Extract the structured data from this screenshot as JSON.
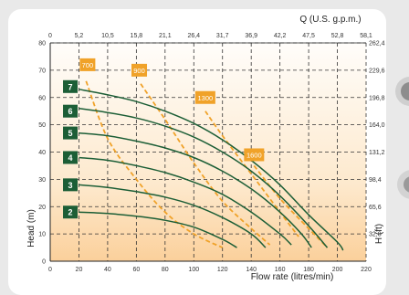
{
  "chart_data": {
    "type": "line",
    "title": "",
    "top_axis_title": "Q (U.S. g.p.m.)",
    "bottom_axis_title": "Flow rate (litres/min)",
    "left_axis_title": "Head (m)",
    "right_axis_title": "H (ft)",
    "xlim": [
      0,
      220
    ],
    "ylim": [
      0,
      80
    ],
    "x_ticks": [
      0,
      20,
      40,
      60,
      80,
      100,
      120,
      140,
      160,
      180,
      200,
      220
    ],
    "y_ticks": [
      0,
      10,
      20,
      30,
      40,
      50,
      60,
      70,
      80
    ],
    "top_ticks": [
      "0",
      "5,2",
      "10,5",
      "15,8",
      "21,1",
      "26,4",
      "31,7",
      "36,9",
      "42,2",
      "47,5",
      "52,8",
      "58,1"
    ],
    "right_ticks": [
      "32,8",
      "65,6",
      "98,4",
      "131,2",
      "164,0",
      "196,8",
      "229,6",
      "262,4"
    ],
    "right_ticks_y": [
      10,
      20,
      30,
      40,
      50,
      60,
      70,
      80
    ],
    "grid": true,
    "pump_color": "#1c5e36",
    "power_color": "#f0a229",
    "pump_curves": [
      {
        "name": "2",
        "label_y": 18,
        "points": [
          [
            20,
            18
          ],
          [
            40,
            17.5
          ],
          [
            60,
            16.5
          ],
          [
            80,
            15
          ],
          [
            100,
            12.5
          ],
          [
            120,
            8
          ],
          [
            130,
            5
          ]
        ]
      },
      {
        "name": "3",
        "label_y": 28,
        "points": [
          [
            20,
            28
          ],
          [
            40,
            27
          ],
          [
            60,
            25.5
          ],
          [
            80,
            23.5
          ],
          [
            100,
            20.5
          ],
          [
            120,
            16
          ],
          [
            140,
            10
          ],
          [
            150,
            5
          ]
        ]
      },
      {
        "name": "4",
        "label_y": 38,
        "points": [
          [
            20,
            38
          ],
          [
            40,
            37
          ],
          [
            60,
            35
          ],
          [
            80,
            32.5
          ],
          [
            100,
            29
          ],
          [
            120,
            24.5
          ],
          [
            140,
            18
          ],
          [
            160,
            10
          ],
          [
            168,
            6
          ]
        ]
      },
      {
        "name": "5",
        "label_y": 47,
        "points": [
          [
            20,
            47
          ],
          [
            40,
            46
          ],
          [
            60,
            44
          ],
          [
            80,
            41.5
          ],
          [
            100,
            38
          ],
          [
            120,
            33
          ],
          [
            140,
            26.5
          ],
          [
            160,
            18
          ],
          [
            175,
            10
          ],
          [
            182,
            5
          ]
        ]
      },
      {
        "name": "6",
        "label_y": 55,
        "points": [
          [
            20,
            56
          ],
          [
            40,
            54.5
          ],
          [
            60,
            52.5
          ],
          [
            80,
            49.5
          ],
          [
            100,
            45.5
          ],
          [
            120,
            40
          ],
          [
            140,
            33
          ],
          [
            160,
            24
          ],
          [
            180,
            13
          ],
          [
            193,
            5
          ]
        ]
      },
      {
        "name": "7",
        "label_y": 64,
        "points": [
          [
            20,
            63
          ],
          [
            40,
            61
          ],
          [
            60,
            58.5
          ],
          [
            80,
            55
          ],
          [
            100,
            50.5
          ],
          [
            120,
            44.5
          ],
          [
            140,
            37
          ],
          [
            160,
            28
          ],
          [
            180,
            17
          ],
          [
            200,
            7
          ],
          [
            204,
            4
          ]
        ]
      }
    ],
    "power_curves": [
      {
        "name": "700",
        "label_x": 26,
        "label_y": 72,
        "points": [
          [
            25,
            66
          ],
          [
            40,
            45
          ],
          [
            60,
            30
          ],
          [
            80,
            18
          ],
          [
            100,
            10
          ],
          [
            120,
            5
          ]
        ]
      },
      {
        "name": "900",
        "label_x": 62,
        "label_y": 70,
        "points": [
          [
            63,
            65
          ],
          [
            80,
            52
          ],
          [
            100,
            36
          ],
          [
            120,
            22
          ],
          [
            140,
            12
          ],
          [
            153,
            6
          ]
        ]
      },
      {
        "name": "1300",
        "label_x": 108,
        "label_y": 60,
        "points": [
          [
            108,
            55
          ],
          [
            120,
            46
          ],
          [
            140,
            32
          ],
          [
            160,
            18
          ],
          [
            173,
            9
          ]
        ]
      },
      {
        "name": "1600",
        "label_x": 142,
        "label_y": 39,
        "points": [
          [
            142,
            35
          ],
          [
            160,
            23
          ],
          [
            180,
            12
          ],
          [
            193,
            5
          ]
        ]
      }
    ]
  }
}
